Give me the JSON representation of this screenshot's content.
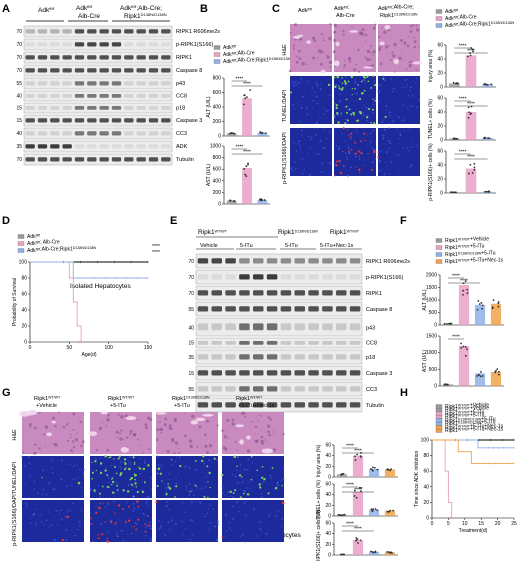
{
  "panels": {
    "A": {
      "letter": "A",
      "columns": [
        "Adk^fl",
        "Adk^fl; Alb-Cre",
        "Adk^fl;Alb-Cre; Ripk1^D138N/D138N"
      ],
      "col_a": "Adk",
      "col_a_sup": "fl/fl",
      "col_b1": "Adk",
      "col_b1_sup": "fl/fl",
      "col_b2": "Alb-Cre",
      "col_c1": "Adk",
      "col_c1_sup": "fl/fl",
      "col_c1_tail": ";Alb-Cre;",
      "col_c2": "Ripk1",
      "col_c2_sup": "D138N/D138N",
      "mw": [
        "70",
        "70",
        "70",
        "70",
        "55",
        "40",
        "15",
        "15",
        "40",
        "35",
        "70"
      ],
      "blots": [
        "RIPK1 R606me2s",
        "p-RIPK1(S166)",
        "RIPK1",
        "Caspase 8",
        "p43",
        "CC8",
        "p18",
        "Caspase 3",
        "CC3",
        "ADK",
        "Tubulin"
      ],
      "footer": "Isolated Hepatocytes"
    },
    "B": {
      "letter": "B",
      "legend": [
        "Adk^fl/fl",
        "Adk^fl/fl;Alb-Cre",
        "Adk^fl/fl;Alb-Cre;Ripk1^D138N/D138N"
      ],
      "ylabel_top": "ALT (U/L)",
      "ylabel_bottom": "AST (U/L)",
      "ticks_top": [
        "800",
        "600",
        "400",
        "200",
        "0"
      ],
      "ticks_bottom": [
        "1000",
        "800",
        "600",
        "400",
        "200",
        "0"
      ],
      "stars": [
        "****",
        "****",
        "****",
        "****",
        "****"
      ]
    },
    "C": {
      "letter": "C",
      "columns": [
        "Adk^fl/fl",
        "Adk^fl/fl; Alb-Cre",
        "Adk^fl/fl;Alb-Cre;Ripk1^D138N/D138N"
      ],
      "rows": [
        "H&E",
        "TUNEL/DAPI",
        "p-RIPK1(S166)/DAPI"
      ],
      "legend": [
        "Adk^fl/fl",
        "Adk^fl/fl;Alb-Cre",
        "Adk^fl/fl;Alb-Cre;Ripk1^D138N/D138N"
      ],
      "ylabels": [
        "Injury area (%)",
        "TUNEL+ cells (%)",
        "p-RIPK1(S166)+ cells (%)"
      ],
      "ticks": [
        "60",
        "40",
        "20",
        "0"
      ],
      "stars": [
        "****",
        "****"
      ]
    },
    "D": {
      "letter": "D",
      "legend": [
        "Adk^fl/fl",
        "Adk^fl/fl; Alb-Cre",
        "Adk^fl/fl;Alb-Cre;Ripk1^D138N/D138N"
      ],
      "ylabel": "Probability of Survival",
      "xlabel": "Age(d)",
      "xticks": [
        "0",
        "50",
        "100",
        "150"
      ],
      "yticks": [
        "100",
        "80",
        "60",
        "40",
        "20",
        "0"
      ],
      "stars": [
        "****",
        "****",
        "****"
      ]
    },
    "E": {
      "letter": "E",
      "groups": [
        "Ripk1^WT/WT",
        "Ripk1^D138N/D138N",
        "Ripk1^WT/WT"
      ],
      "treatments": [
        "Vehicle",
        "5-ITu",
        "5-ITu",
        "5-ITu+Nec-1s"
      ],
      "mw": [
        "70",
        "70",
        "70",
        "55",
        "40",
        "15",
        "35",
        "15",
        "55"
      ],
      "blots": [
        "RIPK1 R606me2s",
        "p-RIPK1(S166)",
        "RIPK1",
        "Caspase 8",
        "p43",
        "CC8",
        "p18",
        "Caspase 3",
        "CC3",
        "Tubulin"
      ],
      "footer": "Isolated Hepatocytes"
    },
    "F": {
      "letter": "F",
      "legend": [
        "Ripk1^WT/WT+Vehicle",
        "Ripk1^WT/WT+5-ITu",
        "Ripk1^D138N/D138N+5-ITu",
        "Ripk1^WT/WT+5-ITu+Nec-1s"
      ],
      "ylabel_top": "ALT (U/L)",
      "ylabel_bottom": "AST (U/L)",
      "ticks_top": [
        "2000",
        "1500",
        "1000",
        "500",
        "0"
      ],
      "ticks_bottom": [
        "1500",
        "1000",
        "500",
        "0"
      ],
      "stars": [
        "****",
        "****",
        "****"
      ]
    },
    "G": {
      "letter": "G",
      "columns": [
        "Ripk1^WT/WT +Vehicle",
        "Ripk1^WT/WT +5-ITu",
        "Ripk1^D138N/D138N +5-ITu",
        "Ripk1^WT/WT +5-ITu+Nec-1s"
      ],
      "rows": [
        "H&E",
        "TUNEL/DAPI",
        "p-RIPK1(S166)/DAPI"
      ],
      "legend": [
        "Ripk1^WT/WT+Vehicle",
        "Ripk1^WT/WT+5-ITu",
        "Ripk1^D138N/D138N+5-ITu",
        "Ripk1^WT/WT+5-ITu+Nec-1s"
      ],
      "ylabels": [
        "Injury area (%)",
        "TUNEL+ cells (%)",
        "p-RIPK1(S166)+ cells (%)"
      ],
      "ticks": [
        "60",
        "40",
        "20",
        "0"
      ],
      "stars": [
        "****",
        "****",
        "****"
      ]
    },
    "H": {
      "letter": "H",
      "legend": [
        "Ripk1^WT/WT+Vehicle",
        "Ripk1^WT/WT+5-ITu",
        "Ripk1^D138N/D138N+5-ITu",
        "Ripk1^WT/WT+5-ITu+Nec-1s"
      ],
      "ylabel": "Time since ADK inhibition",
      "xlabel": "Treatment(d)",
      "xticks": [
        "0",
        "5",
        "10",
        "15",
        "20",
        "25"
      ],
      "yticks": [
        "100",
        "80",
        "60",
        "40",
        "20",
        "0"
      ],
      "stars": [
        "****",
        "****",
        "****"
      ]
    }
  },
  "colors": {
    "group_a": "#9a9a9a",
    "group_b": "#e8a0c4",
    "group_c": "#8fb0e6",
    "group_d": "#f0a24a",
    "he": "#c98bbf",
    "dapi": "#1c2a9c",
    "tunel": "#7bd35a",
    "pripk1": "#d23a3a"
  },
  "chart_data": [
    {
      "type": "scatter",
      "title": "",
      "ylabel": "ALT (U/L)",
      "categories": [
        "Adk^fl/fl",
        "Adk^fl/fl;Alb-Cre",
        "Adk^fl/fl;Alb-Cre;Ripk1^D138N/D138N"
      ],
      "values": [
        40,
        520,
        45
      ],
      "ylim": [
        0,
        800
      ]
    },
    {
      "type": "scatter",
      "ylabel": "AST (U/L)",
      "categories": [
        "Adk^fl/fl",
        "Adk^fl/fl;Alb-Cre",
        "Adk^fl/fl;Alb-Cre;Ripk1^D138N/D138N"
      ],
      "values": [
        60,
        620,
        70
      ],
      "ylim": [
        0,
        1000
      ]
    },
    {
      "type": "line",
      "ylabel": "Probability of Survival",
      "xlabel": "Age(d)",
      "series": [
        {
          "name": "Adk^fl/fl",
          "x": [
            0,
            150
          ],
          "y": [
            100,
            100
          ]
        },
        {
          "name": "Adk^fl/fl; Alb-Cre",
          "x": [
            0,
            45,
            50,
            55,
            60,
            65
          ],
          "y": [
            100,
            100,
            80,
            50,
            20,
            0
          ]
        },
        {
          "name": "Adk^fl/fl;Alb-Cre;Ripk1^D138N/D138N",
          "x": [
            0,
            55,
            150
          ],
          "y": [
            100,
            80,
            80
          ]
        }
      ],
      "xlim": [
        0,
        150
      ],
      "ylim": [
        0,
        100
      ]
    },
    {
      "type": "scatter",
      "ylabel": "ALT (U/L)",
      "categories": [
        "Ripk1^WT/WT+Vehicle",
        "Ripk1^WT/WT+5-ITu",
        "Ripk1^D138N/D138N+5-ITu",
        "Ripk1^WT/WT+5-ITu+Nec-1s"
      ],
      "values": [
        50,
        1600,
        800,
        850
      ],
      "ylim": [
        0,
        2000
      ]
    },
    {
      "type": "scatter",
      "ylabel": "AST (U/L)",
      "categories": [
        "Ripk1^WT/WT+Vehicle",
        "Ripk1^WT/WT+5-ITu",
        "Ripk1^D138N/D138N+5-ITu",
        "Ripk1^WT/WT+5-ITu+Nec-1s"
      ],
      "values": [
        50,
        1200,
        380,
        420
      ],
      "ylim": [
        0,
        1500
      ]
    },
    {
      "type": "line",
      "ylabel": "Time since ADK inhibition",
      "xlabel": "Treatment(d)",
      "series": [
        {
          "name": "Ripk1^WT/WT+Vehicle",
          "x": [
            0,
            25
          ],
          "y": [
            100,
            100
          ]
        },
        {
          "name": "Ripk1^WT/WT+5-ITu",
          "x": [
            0,
            4,
            5,
            6
          ],
          "y": [
            100,
            60,
            20,
            0
          ]
        },
        {
          "name": "Ripk1^D138N/D138N+5-ITu",
          "x": [
            0,
            14,
            25
          ],
          "y": [
            100,
            90,
            90
          ]
        },
        {
          "name": "Ripk1^WT/WT+5-ITu+Nec-1s",
          "x": [
            0,
            8,
            12,
            25
          ],
          "y": [
            100,
            85,
            70,
            70
          ]
        }
      ],
      "xlim": [
        0,
        25
      ],
      "ylim": [
        0,
        100
      ]
    }
  ]
}
